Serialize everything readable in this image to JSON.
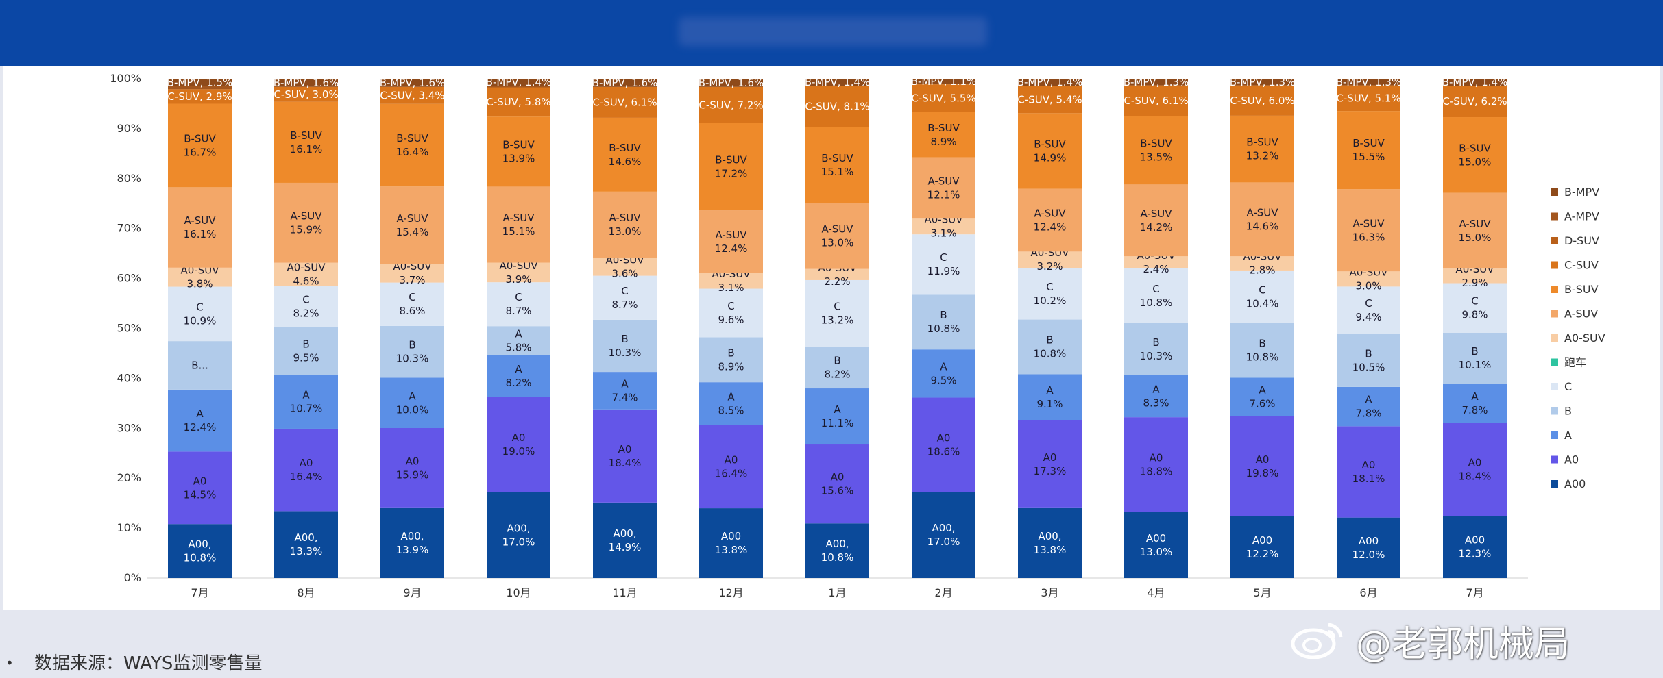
{
  "header": {
    "title_blurred": ""
  },
  "source": {
    "bullet": "•",
    "text": "数据来源：WAYS监测零售量"
  },
  "watermark": {
    "text": "@老郭机械局",
    "icon": "weibo-icon"
  },
  "chart_data": {
    "type": "stacked-bar",
    "title": "",
    "xlabel": "",
    "ylabel": "",
    "ylim": [
      0,
      100
    ],
    "y_ticks": [
      "0%",
      "10%",
      "20%",
      "30%",
      "40%",
      "50%",
      "60%",
      "70%",
      "80%",
      "90%",
      "100%"
    ],
    "grid": false,
    "legend_position": "right",
    "categories": [
      "7月",
      "8月",
      "9月",
      "10月",
      "11月",
      "12月",
      "1月",
      "2月",
      "3月",
      "4月",
      "5月",
      "6月",
      "7月"
    ],
    "series": [
      {
        "name": "A00",
        "color": "#0b4a9a",
        "text_color": "#ffffff",
        "values": [
          10.8,
          13.3,
          13.9,
          17.0,
          14.9,
          13.8,
          10.8,
          17.0,
          13.8,
          13.0,
          12.2,
          12.0,
          12.3
        ],
        "labels": [
          "A00,\n10.8%",
          "A00,\n13.3%",
          "A00,\n13.9%",
          "A00,\n17.0%",
          "A00,\n14.9%",
          "A00\n13.8%",
          "A00,\n10.8%",
          "A00,\n17.0%",
          "A00,\n13.8%",
          "A00\n13.0%",
          "A00\n12.2%",
          "A00\n12.0%",
          "A00\n12.3%"
        ]
      },
      {
        "name": "A0",
        "color": "#6356e8",
        "text_color": "#1a1a2e",
        "values": [
          14.5,
          16.4,
          15.9,
          19.0,
          18.4,
          16.4,
          15.6,
          18.6,
          17.3,
          18.8,
          19.8,
          18.1,
          18.4
        ],
        "labels": [
          "A0\n14.5%",
          "A0\n16.4%",
          "A0\n15.9%",
          "A0\n19.0%",
          "A0\n18.4%",
          "A0\n16.4%",
          "A0\n15.6%",
          "A0\n18.6%",
          "A0\n17.3%",
          "A0\n18.8%",
          "A0\n19.8%",
          "A0\n18.1%",
          "A0\n18.4%"
        ]
      },
      {
        "name": "A",
        "color": "#5b8fe6",
        "text_color": "#1a1a2e",
        "values": [
          12.4,
          10.7,
          10.0,
          8.2,
          7.4,
          8.5,
          11.1,
          9.5,
          9.1,
          8.3,
          7.6,
          7.8,
          7.8
        ],
        "labels": [
          "A\n12.4%",
          "A\n10.7%",
          "A\n10.0%",
          "A\n8.2%",
          "A\n7.4%",
          "A\n8.5%",
          "A\n11.1%",
          "A\n9.5%",
          "A\n9.1%",
          "A\n8.3%",
          "A\n7.6%",
          "A\n7.8%",
          "A\n7.8%"
        ]
      },
      {
        "name": "B",
        "color": "#b1cbea",
        "text_color": "#1a1a2e",
        "values": [
          9.7,
          9.5,
          10.3,
          5.8,
          10.3,
          8.9,
          8.2,
          10.8,
          10.8,
          10.3,
          10.8,
          10.5,
          10.1
        ],
        "labels": [
          "B...",
          "B\n9.5%",
          "B\n10.3%",
          "A\n5.8%",
          "B\n10.3%",
          "B\n8.9%",
          "B\n8.2%",
          "B\n10.8%",
          "B\n10.8%",
          "B\n10.3%",
          "B\n10.8%",
          "B\n10.5%",
          "B\n10.1%"
        ]
      },
      {
        "name": "跑车",
        "color": "#2ec4a0",
        "text_color": "#1a1a2e",
        "values": [
          0,
          0,
          0,
          0,
          0,
          0,
          0,
          0,
          0,
          0,
          0,
          0,
          0
        ],
        "labels": [
          "",
          "",
          "",
          "",
          "",
          "",
          "",
          "",
          "",
          "",
          "",
          "",
          ""
        ]
      },
      {
        "name": "C",
        "color": "#dbe6f4",
        "text_color": "#1a1a2e",
        "values": [
          10.9,
          8.2,
          8.6,
          8.7,
          8.7,
          9.6,
          13.2,
          11.9,
          10.2,
          10.8,
          10.4,
          9.4,
          9.8
        ],
        "labels": [
          "C\n10.9%",
          "C\n8.2%",
          "C\n8.6%",
          "C\n8.7%",
          "C\n8.7%",
          "C\n9.6%",
          "C\n13.2%",
          "C\n11.9%",
          "C\n10.2%",
          "C\n10.8%",
          "C\n10.4%",
          "C\n9.4%",
          "C\n9.8%"
        ]
      },
      {
        "name": "A0-SUV",
        "color": "#f8cda4",
        "text_color": "#1a1a2e",
        "values": [
          3.8,
          4.6,
          3.7,
          3.9,
          3.6,
          3.1,
          2.2,
          3.1,
          3.2,
          2.4,
          2.8,
          3.0,
          2.9
        ],
        "labels": [
          "A0-SUV\n3.8%",
          "A0-SUV\n4.6%",
          "A0-SUV\n3.7%",
          "A0-SUV\n3.9%",
          "A0-SUV\n3.6%",
          "A0-SUV\n3.1%",
          "A0-SUV\n2.2%",
          "A0-SUV\n3.1%",
          "A0-SUV\n3.2%",
          "A0-SUV\n2.4%",
          "A0-SUV\n2.8%",
          "A0-SUV\n3.0%",
          "A0-SUV\n2.9%"
        ]
      },
      {
        "name": "A-SUV",
        "color": "#f3a768",
        "text_color": "#1a1a2e",
        "values": [
          16.1,
          15.9,
          15.4,
          15.1,
          13.0,
          12.4,
          13.0,
          12.1,
          12.4,
          14.2,
          14.6,
          16.3,
          15.0
        ],
        "labels": [
          "A-SUV\n16.1%",
          "A-SUV\n15.9%",
          "A-SUV\n15.4%",
          "A-SUV\n15.1%",
          "A-SUV\n13.0%",
          "A-SUV\n12.4%",
          "A-SUV\n13.0%",
          "A-SUV\n12.1%",
          "A-SUV\n12.4%",
          "A-SUV\n14.2%",
          "A-SUV\n14.6%",
          "A-SUV\n16.3%",
          "A-SUV\n15.0%"
        ]
      },
      {
        "name": "B-SUV",
        "color": "#ee8a2a",
        "text_color": "#1a1a2e",
        "values": [
          16.7,
          16.1,
          16.4,
          13.9,
          14.6,
          17.2,
          15.1,
          8.9,
          14.9,
          13.5,
          13.2,
          15.5,
          15.0
        ],
        "labels": [
          "B-SUV\n16.7%",
          "B-SUV\n16.1%",
          "B-SUV\n16.4%",
          "B-SUV\n13.9%",
          "B-SUV\n14.6%",
          "B-SUV\n17.2%",
          "B-SUV\n15.1%",
          "B-SUV\n8.9%",
          "B-SUV\n14.9%",
          "B-SUV\n13.5%",
          "B-SUV\n13.2%",
          "B-SUV\n15.5%",
          "B-SUV\n15.0%"
        ]
      },
      {
        "name": "C-SUV",
        "color": "#d9741a",
        "text_color": "#ffffff",
        "values": [
          2.9,
          3.0,
          3.4,
          5.8,
          6.1,
          7.2,
          8.1,
          5.5,
          5.4,
          6.1,
          6.0,
          5.1,
          6.2
        ],
        "labels": [
          "C-SUV, 2.9%",
          "C-SUV, 3.0%",
          "C-SUV, 3.4%",
          "C-SUV, 5.8%",
          "C-SUV, 6.1%",
          "C-SUV, 7.2%",
          "C-SUV, 8.1%",
          "C-SUV, 5.5%",
          "C-SUV, 5.4%",
          "C-SUV, 6.1%",
          "C-SUV, 6.0%",
          "C-SUV, 5.1%",
          "C-SUV, 6.2%"
        ]
      },
      {
        "name": "D-SUV",
        "color": "#b9601a",
        "text_color": "#ffffff",
        "values": [
          0,
          0,
          0,
          0,
          0,
          0,
          0,
          0,
          0,
          0,
          0,
          0,
          0
        ],
        "labels": [
          "",
          "",
          "",
          "",
          "",
          "",
          "",
          "",
          "",
          "",
          "",
          "",
          ""
        ]
      },
      {
        "name": "A-MPV",
        "color": "#a3561e",
        "text_color": "#ffffff",
        "values": [
          0.6,
          0,
          0,
          0.3,
          0,
          0,
          0,
          0,
          0,
          0,
          0,
          0,
          0
        ],
        "labels": [
          "",
          "",
          "",
          "",
          "",
          "",
          "",
          "",
          "",
          "",
          "",
          "",
          ""
        ]
      },
      {
        "name": "B-MPV",
        "color": "#8e4a1a",
        "text_color": "#ffffff",
        "values": [
          1.5,
          1.6,
          1.6,
          1.4,
          1.6,
          1.6,
          1.4,
          1.1,
          1.4,
          1.3,
          1.3,
          1.3,
          1.4
        ],
        "labels": [
          "B-MPV, 1.5%",
          "B-MPV, 1.6%",
          "B-MPV, 1.6%",
          "B-MPV, 1.4%",
          "B-MPV, 1.6%",
          "B-MPV, 1.6%",
          "B-MPV, 1.4%",
          "B-MPV, 1.1%",
          "B-MPV, 1.4%",
          "B-MPV, 1.3%",
          "B-MPV, 1.3%",
          "B-MPV, 1.3%",
          "B-MPV, 1.4%"
        ]
      }
    ],
    "legend_order": [
      "B-MPV",
      "A-MPV",
      "D-SUV",
      "C-SUV",
      "B-SUV",
      "A-SUV",
      "A0-SUV",
      "跑车",
      "C",
      "B",
      "A",
      "A0",
      "A00"
    ]
  }
}
